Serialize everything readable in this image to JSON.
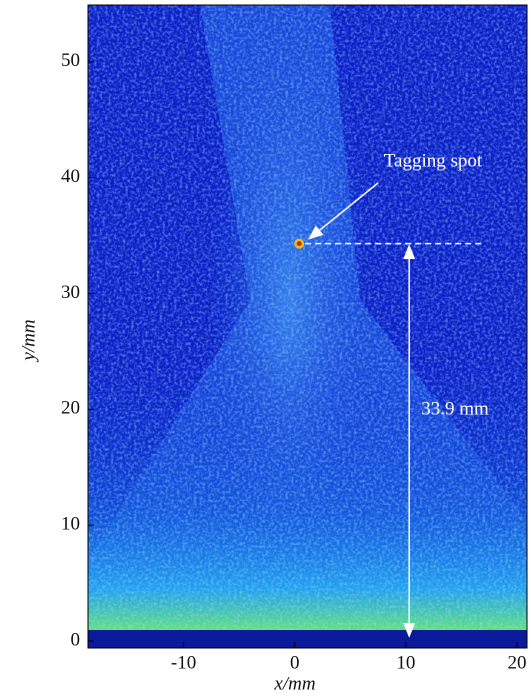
{
  "chart_data": {
    "type": "image",
    "xlabel": "x/mm",
    "ylabel": "y/mm",
    "xlim": [
      -18.6,
      20.9
    ],
    "ylim": [
      -0.6,
      54.9
    ],
    "xticks": [
      -10,
      0,
      10,
      20
    ],
    "yticks": [
      0,
      10,
      20,
      30,
      40,
      50
    ],
    "tagging_spot": {
      "x": 0.4,
      "y": 34.3,
      "label": "Tagging spot"
    },
    "distance": {
      "value": 33.9,
      "label": "33.9 mm",
      "x": 10.3
    },
    "dashed_line_end": 17
  }
}
